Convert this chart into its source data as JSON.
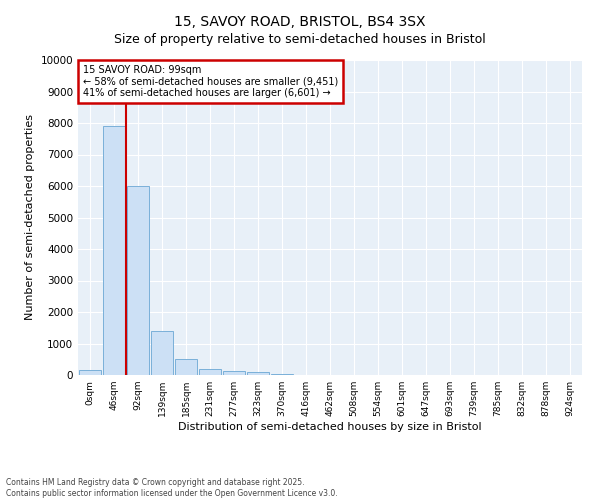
{
  "title1": "15, SAVOY ROAD, BRISTOL, BS4 3SX",
  "title2": "Size of property relative to semi-detached houses in Bristol",
  "xlabel": "Distribution of semi-detached houses by size in Bristol",
  "ylabel": "Number of semi-detached properties",
  "bar_categories": [
    "0sqm",
    "46sqm",
    "92sqm",
    "139sqm",
    "185sqm",
    "231sqm",
    "277sqm",
    "323sqm",
    "370sqm",
    "416sqm",
    "462sqm",
    "508sqm",
    "554sqm",
    "601sqm",
    "647sqm",
    "693sqm",
    "739sqm",
    "785sqm",
    "832sqm",
    "878sqm",
    "924sqm"
  ],
  "bar_values": [
    150,
    7900,
    6000,
    1400,
    500,
    200,
    130,
    80,
    30,
    10,
    5,
    2,
    1,
    0,
    0,
    0,
    0,
    0,
    0,
    0,
    0
  ],
  "bar_color": "#cce0f5",
  "bar_edgecolor": "#7ab0d9",
  "vline_color": "#cc0000",
  "vline_x": 1.5,
  "annotation_title": "15 SAVOY ROAD: 99sqm",
  "annotation_line1": "← 58% of semi-detached houses are smaller (9,451)",
  "annotation_line2": "41% of semi-detached houses are larger (6,601) →",
  "annotation_box_color": "#ffffff",
  "annotation_border_color": "#cc0000",
  "ylim": [
    0,
    10000
  ],
  "yticks": [
    0,
    1000,
    2000,
    3000,
    4000,
    5000,
    6000,
    7000,
    8000,
    9000,
    10000
  ],
  "footer1": "Contains HM Land Registry data © Crown copyright and database right 2025.",
  "footer2": "Contains public sector information licensed under the Open Government Licence v3.0.",
  "bg_color": "#ffffff",
  "plot_bg_color": "#e8f0f8",
  "grid_color": "#ffffff",
  "title1_fontsize": 10,
  "title2_fontsize": 9
}
